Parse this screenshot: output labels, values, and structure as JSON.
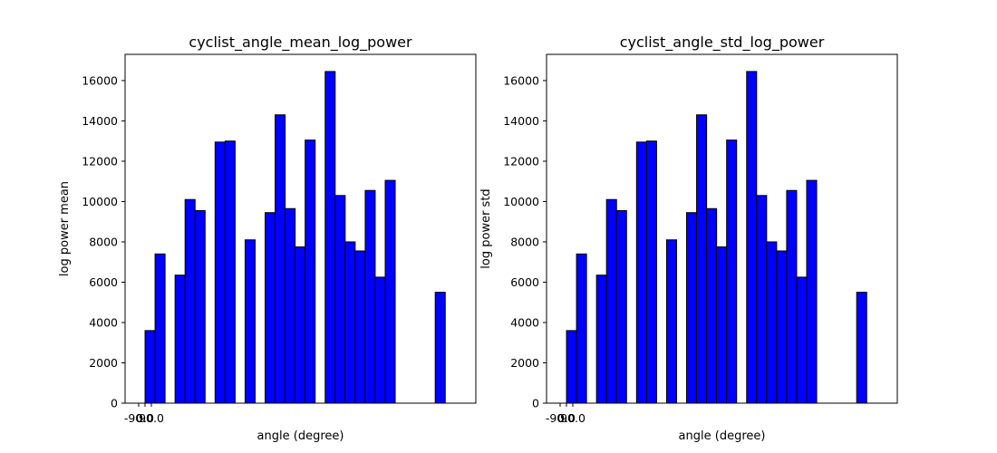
{
  "chart_data": [
    {
      "type": "bar",
      "title": "cyclist_angle_mean_log_power",
      "xlabel": "angle (degree)",
      "ylabel": "log power mean",
      "xlim": [
        -90.0,
        90.0
      ],
      "ylim": [
        0,
        17300
      ],
      "yticks": [
        0,
        2000,
        4000,
        6000,
        8000,
        10000,
        12000,
        14000,
        16000
      ],
      "xtick_labels": [
        "-90.0",
        "0.0",
        "90.0"
      ],
      "grid": false,
      "bar_color": "#0000ff",
      "edge_color": "#000000",
      "values": [
        0,
        3600,
        7400,
        0,
        6350,
        10100,
        9550,
        0,
        12950,
        13000,
        0,
        8100,
        0,
        9450,
        14300,
        9650,
        7750,
        13050,
        0,
        16450,
        10300,
        8000,
        7550,
        10550,
        6250,
        11050,
        0,
        0,
        0,
        0,
        5500,
        0
      ]
    },
    {
      "type": "bar",
      "title": "cyclist_angle_std_log_power",
      "xlabel": "angle (degree)",
      "ylabel": "log power std",
      "xlim": [
        -90.0,
        90.0
      ],
      "ylim": [
        0,
        17300
      ],
      "yticks": [
        0,
        2000,
        4000,
        6000,
        8000,
        10000,
        12000,
        14000,
        16000
      ],
      "xtick_labels": [
        "-90.0",
        "0.0",
        "90.0"
      ],
      "grid": false,
      "bar_color": "#0000ff",
      "edge_color": "#000000",
      "values": [
        0,
        3600,
        7400,
        0,
        6350,
        10100,
        9550,
        0,
        12950,
        13000,
        0,
        8100,
        0,
        9450,
        14300,
        9650,
        7750,
        13050,
        0,
        16450,
        10300,
        8000,
        7550,
        10550,
        6250,
        11050,
        0,
        0,
        0,
        0,
        5500,
        0
      ]
    }
  ]
}
